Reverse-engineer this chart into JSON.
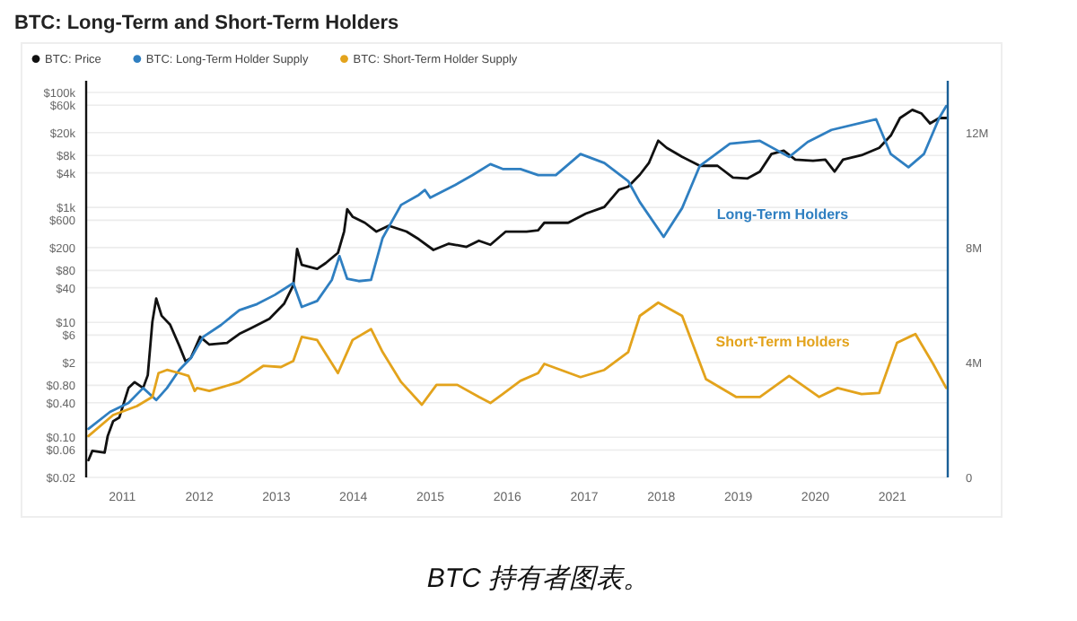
{
  "chart_data": {
    "type": "line",
    "title": "BTC: Long-Term and Short-Term Holders",
    "log": "y",
    "grid": "y",
    "legend": "top left",
    "marker": "none",
    "xlim": [
      2010.53,
      2021.72
    ],
    "xticks": [
      2011,
      2012,
      2013,
      2014,
      2015,
      2016,
      2017,
      2018,
      2019,
      2020,
      2021
    ],
    "ylim": [
      0.02,
      160000
    ],
    "yticks": [
      {
        "value": 0.02,
        "label": "$0.02"
      },
      {
        "value": 0.06,
        "label": "$0.06"
      },
      {
        "value": 0.1,
        "label": "$0.10"
      },
      {
        "value": 0.4,
        "label": "$0.40"
      },
      {
        "value": 0.8,
        "label": "$0.80"
      },
      {
        "value": 2,
        "label": "$2"
      },
      {
        "value": 6,
        "label": "$6"
      },
      {
        "value": 10,
        "label": "$10"
      },
      {
        "value": 40,
        "label": "$40"
      },
      {
        "value": 80,
        "label": "$80"
      },
      {
        "value": 200,
        "label": "$200"
      },
      {
        "value": 600,
        "label": "$600"
      },
      {
        "value": 1000,
        "label": "$1k"
      },
      {
        "value": 4000,
        "label": "$4k"
      },
      {
        "value": 8000,
        "label": "$8k"
      },
      {
        "value": 20000,
        "label": "$20k"
      },
      {
        "value": 60000,
        "label": "$60k"
      },
      {
        "value": 100000,
        "label": "$100k"
      }
    ],
    "y2lim": [
      0,
      13.8
    ],
    "y2ticks": [
      0,
      {
        "value": 4,
        "label": "4M"
      },
      {
        "value": 8,
        "label": "8M"
      },
      {
        "value": 12,
        "label": "12M"
      }
    ],
    "series": [
      {
        "name": "BTC: Price",
        "color": "#111111",
        "x": [
          2010.56,
          2010.61,
          2010.77,
          2010.81,
          2010.88,
          2010.96,
          2011.08,
          2011.16,
          2011.27,
          2011.33,
          2011.39,
          2011.44,
          2011.51,
          2011.62,
          2011.74,
          2011.82,
          2011.89,
          2012.01,
          2012.13,
          2012.36,
          2012.52,
          2012.67,
          2012.91,
          2013.1,
          2013.22,
          2013.27,
          2013.33,
          2013.53,
          2013.64,
          2013.8,
          2013.88,
          2013.92,
          2013.99,
          2014.15,
          2014.3,
          2014.46,
          2014.69,
          2014.85,
          2015.04,
          2015.24,
          2015.47,
          2015.63,
          2015.78,
          2015.98,
          2016.25,
          2016.4,
          2016.48,
          2016.79,
          2017.02,
          2017.26,
          2017.45,
          2017.57,
          2017.72,
          2017.84,
          2017.96,
          2018.07,
          2018.27,
          2018.5,
          2018.73,
          2018.93,
          2019.12,
          2019.28,
          2019.43,
          2019.59,
          2019.74,
          2019.97,
          2020.13,
          2020.25,
          2020.36,
          2020.6,
          2020.83,
          2020.98,
          2021.1,
          2021.26,
          2021.38,
          2021.49,
          2021.61,
          2021.7
        ],
        "values": [
          0.04,
          0.058,
          0.054,
          0.105,
          0.19,
          0.22,
          0.72,
          0.91,
          0.72,
          1.2,
          10.2,
          26,
          13,
          9.1,
          3.9,
          2.1,
          2.4,
          5.6,
          4.1,
          4.4,
          6.3,
          7.9,
          11.5,
          21,
          44,
          190,
          100,
          85,
          107,
          162,
          380,
          930,
          690,
          540,
          380,
          480,
          380,
          280,
          182,
          234,
          206,
          263,
          224,
          380,
          380,
          400,
          540,
          540,
          780,
          1020,
          2040,
          2300,
          3700,
          6000,
          14500,
          10900,
          7600,
          5300,
          5300,
          3300,
          3200,
          4200,
          8500,
          9700,
          6800,
          6500,
          6800,
          4200,
          6800,
          8100,
          10900,
          17800,
          36000,
          50000,
          43000,
          29000,
          36000,
          36000
        ]
      },
      {
        "name": "BTC: Long-Term Holder Supply",
        "color": "#2f7fc1",
        "axis": "y2",
        "x": [
          2010.56,
          2010.84,
          2011.08,
          2011.27,
          2011.44,
          2011.58,
          2011.74,
          2011.89,
          2012.05,
          2012.28,
          2012.52,
          2012.75,
          2012.98,
          2013.22,
          2013.33,
          2013.53,
          2013.72,
          2013.82,
          2013.92,
          2014.07,
          2014.23,
          2014.38,
          2014.62,
          2014.85,
          2014.93,
          2015.0,
          2015.32,
          2015.55,
          2015.78,
          2015.94,
          2016.17,
          2016.4,
          2016.63,
          2016.95,
          2017.26,
          2017.57,
          2017.72,
          2018.03,
          2018.27,
          2018.5,
          2018.89,
          2019.28,
          2019.66,
          2019.9,
          2020.21,
          2020.79,
          2020.98,
          2021.21,
          2021.41,
          2021.61,
          2021.7
        ],
        "values": [
          1.69,
          2.28,
          2.59,
          3.11,
          2.69,
          3.11,
          3.74,
          4.15,
          4.89,
          5.3,
          5.82,
          6.03,
          6.35,
          6.76,
          5.93,
          6.14,
          6.87,
          7.7,
          6.91,
          6.83,
          6.87,
          8.33,
          9.48,
          9.83,
          10.0,
          9.73,
          10.17,
          10.52,
          10.9,
          10.73,
          10.73,
          10.52,
          10.52,
          11.25,
          10.94,
          10.31,
          9.58,
          8.37,
          9.37,
          10.84,
          11.61,
          11.71,
          11.15,
          11.67,
          12.09,
          12.46,
          11.25,
          10.79,
          11.25,
          12.51,
          12.92
        ]
      },
      {
        "name": "BTC: Short-Term Holder Supply",
        "color": "#e3a31c",
        "axis": "y2",
        "x": [
          2010.56,
          2010.88,
          2011.19,
          2011.39,
          2011.47,
          2011.58,
          2011.74,
          2011.86,
          2011.94,
          2011.97,
          2012.13,
          2012.52,
          2012.83,
          2013.06,
          2013.22,
          2013.33,
          2013.53,
          2013.8,
          2013.99,
          2014.23,
          2014.38,
          2014.62,
          2014.89,
          2015.08,
          2015.35,
          2015.63,
          2015.78,
          2015.94,
          2016.17,
          2016.4,
          2016.48,
          2016.95,
          2017.26,
          2017.57,
          2017.72,
          2017.96,
          2018.27,
          2018.58,
          2018.97,
          2019.28,
          2019.66,
          2020.05,
          2020.29,
          2020.6,
          2020.83,
          2021.06,
          2021.3,
          2021.53,
          2021.7
        ],
        "values": [
          1.44,
          2.17,
          2.48,
          2.8,
          3.63,
          3.74,
          3.63,
          3.53,
          3.01,
          3.11,
          3.01,
          3.32,
          3.88,
          3.84,
          4.05,
          4.89,
          4.78,
          3.63,
          4.78,
          5.16,
          4.36,
          3.32,
          2.53,
          3.22,
          3.22,
          2.8,
          2.59,
          2.9,
          3.36,
          3.63,
          3.95,
          3.49,
          3.74,
          4.36,
          5.62,
          6.08,
          5.62,
          3.42,
          2.8,
          2.8,
          3.53,
          2.8,
          3.11,
          2.9,
          2.94,
          4.68,
          4.99,
          3.95,
          3.11
        ]
      }
    ],
    "annotations": [
      "Long-Term Holders",
      "Short-Term Holders",
      "BTC 持有者图表。"
    ]
  }
}
